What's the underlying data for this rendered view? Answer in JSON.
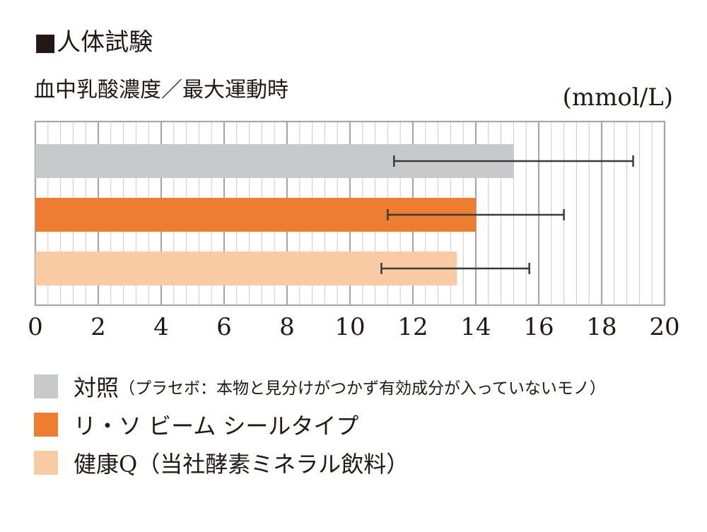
{
  "header": {
    "title": "■人体試験",
    "subtitle": "血中乳酸濃度／最大運動時",
    "unit": "(mmol/L)"
  },
  "colors": {
    "control": "#c8c9ca",
    "product": "#ed7d31",
    "comparison": "#f8cba5",
    "grid": "#a7a8a9",
    "error_bar": "#3e3a39"
  },
  "chart_data": {
    "type": "bar",
    "orientation": "horizontal",
    "xlim": [
      0,
      20
    ],
    "major_ticks": [
      0,
      2,
      4,
      6,
      8,
      10,
      12,
      14,
      16,
      18,
      20
    ],
    "tick_labels": [
      "0",
      "2",
      "4",
      "6",
      "8",
      "10",
      "12",
      "14",
      "16",
      "18",
      "20"
    ],
    "grid": true,
    "series": [
      {
        "name": "対照",
        "value": 15.2,
        "error_low": 11.4,
        "error_high": 19.0,
        "color": "#c8c9ca"
      },
      {
        "name": "リ・ソ ビーム シールタイプ",
        "value": 14.0,
        "error_low": 11.2,
        "error_high": 16.8,
        "color": "#ed7d31"
      },
      {
        "name": "健康Q",
        "value": 13.4,
        "error_low": 11.0,
        "error_high": 15.7,
        "color": "#f8cba5"
      }
    ]
  },
  "legend": [
    {
      "label": "対照",
      "note": "（プラセボ：本物と見分けがつかず有効成分が入っていないモノ）",
      "color": "#c8c9ca"
    },
    {
      "label": "リ・ソ ビーム シールタイプ",
      "note": "",
      "color": "#ed7d31"
    },
    {
      "label": "健康Q（当社酵素ミネラル飲料）",
      "note": "",
      "color": "#f8cba5"
    }
  ]
}
